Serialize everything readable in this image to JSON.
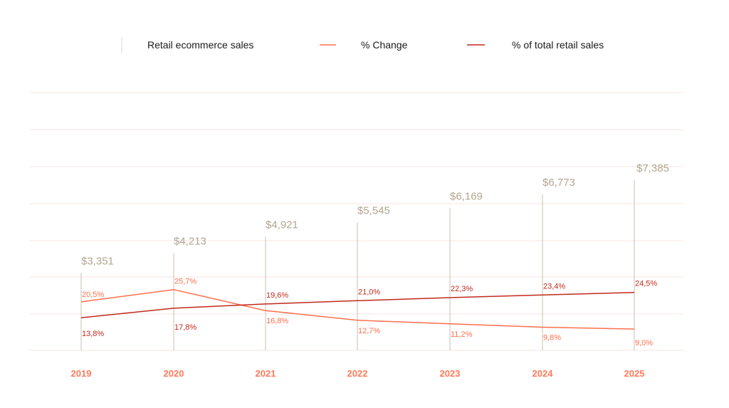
{
  "chart_data": {
    "type": "line",
    "title": "",
    "xlabel": "",
    "ylabel": "",
    "categories": [
      "2019",
      "2020",
      "2021",
      "2022",
      "2023",
      "2024",
      "2025"
    ],
    "legend": {
      "placement": "top",
      "entries": [
        "Retail ecommerce sales",
        "% Change",
        "% of total retail sales"
      ]
    },
    "series": [
      {
        "name": "Retail ecommerce sales",
        "kind": "bar-lines",
        "values": [
          3351,
          4213,
          4921,
          5545,
          6169,
          6773,
          7385
        ],
        "labels": [
          "$3,351",
          "$4,213",
          "$4,921",
          "$5,545",
          "$6,169",
          "$6,773",
          "$7,385"
        ],
        "color": "#c9bfb0",
        "label_color": "#b3a591"
      },
      {
        "name": "% Change",
        "kind": "line",
        "values": [
          20.5,
          25.7,
          16.8,
          12.7,
          11.2,
          9.8,
          9.0
        ],
        "labels": [
          "20,5%",
          "25,7%",
          "16,8%",
          "12,7%",
          "11,2%",
          "9,8%",
          "9,0%"
        ],
        "color": "#ff6f4b"
      },
      {
        "name": "% of total retail sales",
        "kind": "line",
        "values": [
          13.8,
          17.8,
          19.6,
          21.0,
          22.3,
          23.4,
          24.5
        ],
        "labels": [
          "13,8%",
          "17,8%",
          "19,6%",
          "21,0%",
          "22,3%",
          "23,4%",
          "24,5%"
        ],
        "color": "#c0291c"
      }
    ],
    "colors": {
      "year_label": "#ff7a59",
      "grid": "#f7e6df",
      "legend_divider": "#d9d9d9"
    },
    "grid": true
  }
}
